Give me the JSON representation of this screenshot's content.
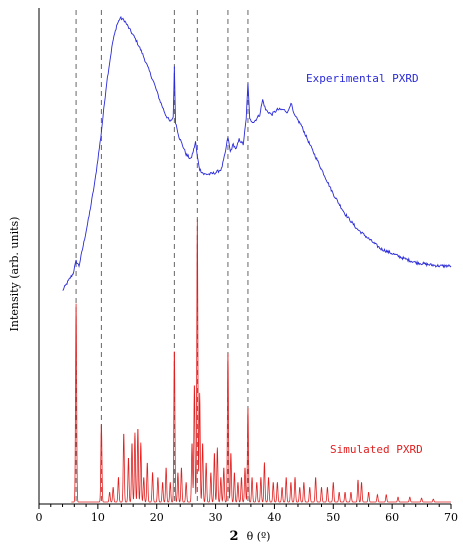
{
  "chart_data": {
    "type": "line",
    "xlabel_bold": "2",
    "xlabel_rest": "θ (º)",
    "ylabel": "Intensity (arb. units)",
    "xlim": [
      0,
      70
    ],
    "ylim": [
      0,
      1
    ],
    "x_ticks": [
      0,
      10,
      20,
      30,
      40,
      50,
      60,
      70
    ],
    "minor_tick_step": 2,
    "grid": false,
    "reference_lines_2theta": [
      6.3,
      10.6,
      23.0,
      26.9,
      32.1,
      35.5
    ],
    "series": [
      {
        "name": "Experimental PXRD",
        "color": "#2b2bd8",
        "points": [
          [
            4.0,
            0.43
          ],
          [
            5.0,
            0.45
          ],
          [
            5.8,
            0.465
          ],
          [
            6.3,
            0.49
          ],
          [
            6.8,
            0.48
          ],
          [
            7.5,
            0.52
          ],
          [
            8.5,
            0.58
          ],
          [
            9.5,
            0.65
          ],
          [
            10.5,
            0.74
          ],
          [
            11.5,
            0.85
          ],
          [
            12.5,
            0.93
          ],
          [
            13.2,
            0.965
          ],
          [
            13.8,
            0.98
          ],
          [
            14.5,
            0.975
          ],
          [
            15.5,
            0.955
          ],
          [
            16.5,
            0.935
          ],
          [
            17.5,
            0.91
          ],
          [
            18.5,
            0.88
          ],
          [
            19.5,
            0.85
          ],
          [
            20.5,
            0.815
          ],
          [
            21.5,
            0.785
          ],
          [
            22.3,
            0.77
          ],
          [
            22.8,
            0.78
          ],
          [
            23.0,
            0.88
          ],
          [
            23.2,
            0.77
          ],
          [
            23.8,
            0.74
          ],
          [
            24.5,
            0.72
          ],
          [
            25.0,
            0.705
          ],
          [
            25.8,
            0.695
          ],
          [
            26.3,
            0.715
          ],
          [
            26.6,
            0.73
          ],
          [
            26.9,
            0.7
          ],
          [
            27.3,
            0.675
          ],
          [
            28.0,
            0.665
          ],
          [
            29.0,
            0.665
          ],
          [
            30.0,
            0.668
          ],
          [
            31.0,
            0.675
          ],
          [
            31.6,
            0.705
          ],
          [
            32.1,
            0.74
          ],
          [
            32.5,
            0.71
          ],
          [
            33.0,
            0.725
          ],
          [
            33.5,
            0.715
          ],
          [
            34.0,
            0.735
          ],
          [
            34.7,
            0.725
          ],
          [
            35.2,
            0.775
          ],
          [
            35.5,
            0.85
          ],
          [
            35.8,
            0.775
          ],
          [
            36.5,
            0.77
          ],
          [
            37.5,
            0.785
          ],
          [
            38.0,
            0.815
          ],
          [
            38.5,
            0.795
          ],
          [
            39.5,
            0.785
          ],
          [
            40.5,
            0.795
          ],
          [
            41.5,
            0.795
          ],
          [
            42.3,
            0.79
          ],
          [
            42.8,
            0.81
          ],
          [
            43.3,
            0.785
          ],
          [
            44.5,
            0.765
          ],
          [
            46.0,
            0.725
          ],
          [
            48.0,
            0.675
          ],
          [
            50.0,
            0.625
          ],
          [
            52.0,
            0.585
          ],
          [
            54.0,
            0.555
          ],
          [
            56.0,
            0.535
          ],
          [
            58.0,
            0.515
          ],
          [
            60.0,
            0.505
          ],
          [
            62.0,
            0.495
          ],
          [
            64.0,
            0.487
          ],
          [
            66.0,
            0.483
          ],
          [
            68.0,
            0.48
          ],
          [
            70.0,
            0.48
          ]
        ]
      },
      {
        "name": "Simulated PXRD",
        "color": "#e02020",
        "baseline": 0.004,
        "peaks": [
          [
            6.3,
            0.4
          ],
          [
            10.6,
            0.16
          ],
          [
            12.0,
            0.02
          ],
          [
            12.6,
            0.03
          ],
          [
            13.5,
            0.05
          ],
          [
            14.4,
            0.14
          ],
          [
            15.2,
            0.09
          ],
          [
            15.8,
            0.12
          ],
          [
            16.3,
            0.14
          ],
          [
            16.8,
            0.15
          ],
          [
            17.3,
            0.12
          ],
          [
            17.8,
            0.05
          ],
          [
            18.4,
            0.08
          ],
          [
            19.3,
            0.06
          ],
          [
            20.2,
            0.05
          ],
          [
            21.0,
            0.04
          ],
          [
            21.6,
            0.07
          ],
          [
            22.3,
            0.04
          ],
          [
            23.0,
            0.31
          ],
          [
            23.6,
            0.06
          ],
          [
            24.2,
            0.07
          ],
          [
            25.0,
            0.04
          ],
          [
            26.0,
            0.12
          ],
          [
            26.4,
            0.24
          ],
          [
            26.9,
            0.57
          ],
          [
            27.3,
            0.22
          ],
          [
            27.8,
            0.12
          ],
          [
            28.4,
            0.08
          ],
          [
            29.2,
            0.06
          ],
          [
            29.8,
            0.1
          ],
          [
            30.3,
            0.11
          ],
          [
            30.9,
            0.05
          ],
          [
            31.4,
            0.07
          ],
          [
            32.1,
            0.3
          ],
          [
            32.6,
            0.1
          ],
          [
            33.2,
            0.06
          ],
          [
            33.8,
            0.04
          ],
          [
            34.4,
            0.05
          ],
          [
            35.0,
            0.07
          ],
          [
            35.5,
            0.19
          ],
          [
            36.2,
            0.05
          ],
          [
            37.0,
            0.04
          ],
          [
            37.7,
            0.05
          ],
          [
            38.3,
            0.08
          ],
          [
            39.0,
            0.05
          ],
          [
            39.8,
            0.04
          ],
          [
            40.5,
            0.04
          ],
          [
            41.3,
            0.03
          ],
          [
            42.0,
            0.05
          ],
          [
            42.8,
            0.04
          ],
          [
            43.5,
            0.05
          ],
          [
            44.3,
            0.03
          ],
          [
            45.0,
            0.04
          ],
          [
            46.0,
            0.03
          ],
          [
            47.0,
            0.05
          ],
          [
            48.0,
            0.03
          ],
          [
            49.0,
            0.03
          ],
          [
            50.0,
            0.04
          ],
          [
            51.0,
            0.02
          ],
          [
            52.0,
            0.02
          ],
          [
            53.0,
            0.02
          ],
          [
            54.2,
            0.045
          ],
          [
            54.8,
            0.04
          ],
          [
            56.0,
            0.02
          ],
          [
            57.5,
            0.015
          ],
          [
            59.0,
            0.015
          ],
          [
            61.0,
            0.01
          ],
          [
            63.0,
            0.01
          ],
          [
            65.0,
            0.008
          ],
          [
            67.0,
            0.006
          ]
        ]
      }
    ]
  }
}
